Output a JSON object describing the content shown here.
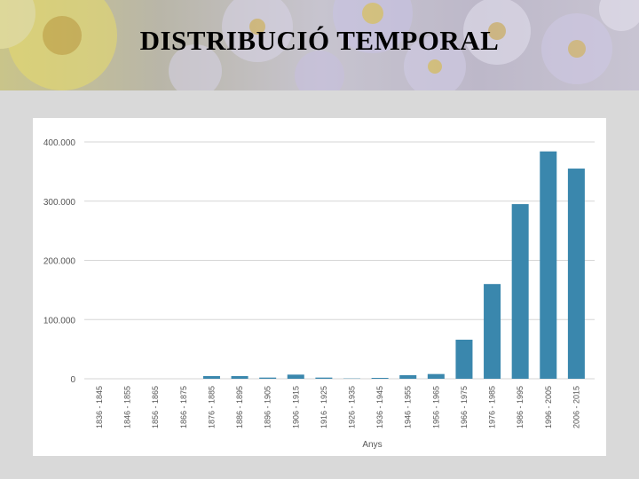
{
  "title": "DISTRIBUCIÓ TEMPORAL",
  "colors": {
    "bar": "#3a87ad",
    "grid": "#d6d6d6",
    "axis_text": "#555555",
    "background": "#d9d9d9"
  },
  "chart_data": {
    "type": "bar",
    "title": "",
    "xlabel": "Anys",
    "ylabel": "",
    "ylim": [
      0,
      400000
    ],
    "yticks": [
      0,
      100000,
      200000,
      300000,
      400000
    ],
    "ytick_labels": [
      "0",
      "100.000",
      "200.000",
      "300.000",
      "400.000"
    ],
    "grid": true,
    "categories": [
      "1836 - 1845",
      "1846 - 1855",
      "1856 - 1865",
      "1866 - 1875",
      "1876 - 1885",
      "1886 - 1895",
      "1896 - 1905",
      "1906 - 1915",
      "1916 - 1925",
      "1926 - 1935",
      "1936 - 1945",
      "1946 - 1955",
      "1956 - 1965",
      "1966 - 1975",
      "1976 - 1985",
      "1986 - 1995",
      "1996 - 2005",
      "2006 - 2015"
    ],
    "values": [
      0,
      0,
      0,
      0,
      4500,
      4500,
      2000,
      7000,
      2000,
      500,
      1500,
      6000,
      8000,
      66000,
      160000,
      295000,
      384000,
      355000
    ]
  }
}
